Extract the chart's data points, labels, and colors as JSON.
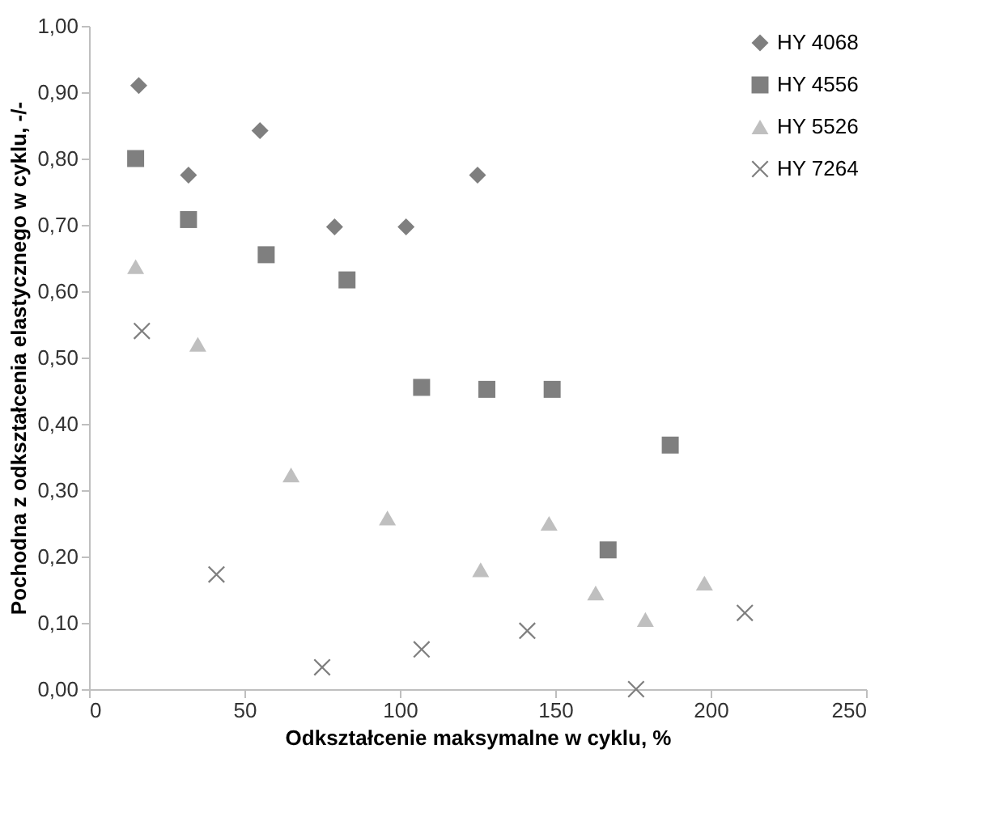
{
  "chart_data": {
    "type": "scatter",
    "xlabel": "Odkształcenie maksymalne w cyklu, %",
    "ylabel": "Pochodna z odkształcenia elastycznego w cyklu, -/-",
    "xlim": [
      0,
      250
    ],
    "xticks": [
      0,
      50,
      100,
      150,
      200,
      250
    ],
    "ylim": [
      0,
      1
    ],
    "yticks": [
      {
        "value": 0,
        "label": "0,00"
      },
      {
        "value": 0.1,
        "label": "0,10"
      },
      {
        "value": 0.2,
        "label": "0,20"
      },
      {
        "value": 0.3,
        "label": "0,30"
      },
      {
        "value": 0.4,
        "label": "0,40"
      },
      {
        "value": 0.5,
        "label": "0,50"
      },
      {
        "value": 0.6,
        "label": "0,60"
      },
      {
        "value": 0.7,
        "label": "0,70"
      },
      {
        "value": 0.8,
        "label": "0,80"
      },
      {
        "value": 0.9,
        "label": "0,90"
      },
      {
        "value": 1,
        "label": "1,00"
      }
    ],
    "grid": false,
    "legend": "top right",
    "series": [
      {
        "name": "HY 4068",
        "color": "#7f7f7f",
        "marker": "diamond",
        "x": [
          16,
          32,
          55,
          79,
          102,
          125
        ],
        "values": [
          0.91,
          0.775,
          0.842,
          0.697,
          0.697,
          0.775
        ]
      },
      {
        "name": "HY 4556",
        "color": "#7f7f7f",
        "marker": "square",
        "x": [
          15,
          32,
          57,
          83,
          107,
          128,
          149,
          167,
          187
        ],
        "values": [
          0.8,
          0.708,
          0.655,
          0.617,
          0.455,
          0.452,
          0.452,
          0.21,
          0.368
        ]
      },
      {
        "name": "HY 5526",
        "color": "#bfbfbf",
        "marker": "triangle",
        "x": [
          15,
          35,
          65,
          96,
          126,
          148,
          163,
          179,
          198
        ],
        "values": [
          0.637,
          0.52,
          0.323,
          0.258,
          0.18,
          0.25,
          0.145,
          0.105,
          0.16
        ]
      },
      {
        "name": "HY 7264",
        "color": "#7f7f7f",
        "marker": "cross",
        "x": [
          17,
          41,
          75,
          107,
          141,
          176,
          211
        ],
        "values": [
          0.54,
          0.173,
          0.033,
          0.06,
          0.088,
          0.0,
          0.115
        ]
      }
    ]
  }
}
